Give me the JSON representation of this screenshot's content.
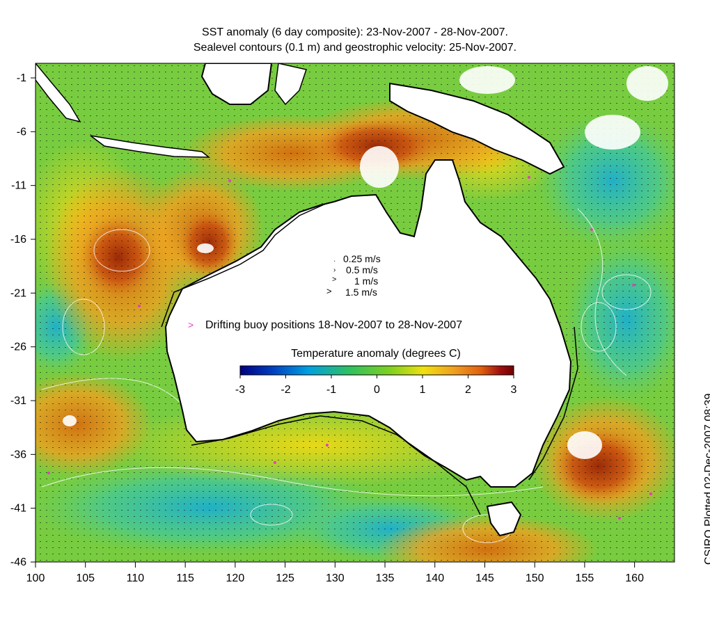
{
  "title_line1": "SST anomaly (6 day composite): 23-Nov-2007 - 28-Nov-2007.",
  "title_line2": "Sealevel contours (0.1 m) and geostrophic velocity: 25-Nov-2007.",
  "credit": "CSIRO Plotted 02-Dec-2007 08:39",
  "x_ticks": [
    "100",
    "105",
    "110",
    "115",
    "120",
    "125",
    "130",
    "135",
    "140",
    "145",
    "150",
    "155",
    "160"
  ],
  "y_ticks": [
    "-1",
    "-6",
    "-11",
    "-16",
    "-21",
    "-26",
    "-31",
    "-36",
    "-41",
    "-46"
  ],
  "velocity_legend": [
    "0.25 m/s",
    "0.5 m/s",
    "1 m/s",
    "1.5 m/s"
  ],
  "buoy_legend": "Drifting buoy positions 18-Nov-2007 to 28-Nov-2007",
  "colorbar": {
    "title": "Temperature anomaly (degrees C)",
    "ticks": [
      "-3",
      "-2",
      "-1",
      "0",
      "1",
      "2",
      "3"
    ],
    "range": [
      -3,
      3
    ],
    "colors": [
      "#000080",
      "#0040c0",
      "#00a0e0",
      "#30c060",
      "#80d020",
      "#f0e010",
      "#f0a020",
      "#e06010",
      "#a01010",
      "#700000"
    ]
  },
  "colors": {
    "ocean_base": "#7fcf3c",
    "warm": "#e08a20",
    "hot": "#b03c0a",
    "cool": "#3ac8a8",
    "land": "#ffffff",
    "buoy": "#e040c0"
  }
}
